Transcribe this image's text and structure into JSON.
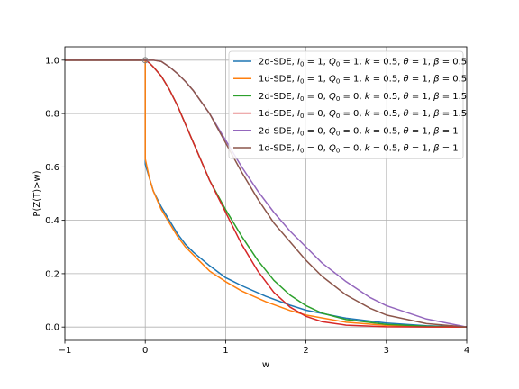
{
  "chart_data": {
    "type": "line",
    "title": "",
    "xlabel": "w",
    "ylabel": "P(Z(T)>w)",
    "xlim": [
      -1,
      4
    ],
    "ylim": [
      -0.05,
      1.05
    ],
    "xticks": [
      -1,
      0,
      1,
      2,
      3,
      4
    ],
    "xtick_labels": [
      "−1",
      "0",
      "1",
      "2",
      "3",
      "4"
    ],
    "yticks": [
      0.0,
      0.2,
      0.4,
      0.6,
      0.8,
      1.0
    ],
    "ytick_labels": [
      "0.0",
      "0.2",
      "0.4",
      "0.6",
      "0.8",
      "1.0"
    ],
    "grid": true,
    "legend_position": "top-right",
    "marker": {
      "x": 0,
      "y": 1.0,
      "shape": "open-circle"
    },
    "series": [
      {
        "label_parts": {
          "model": "2d-SDE,",
          "I0": "1",
          "Q0": "1",
          "k": "0.5",
          "theta": "1",
          "beta": "0.5"
        },
        "color": "#1f77b4",
        "x": [
          -1,
          0,
          0,
          0.05,
          0.1,
          0.2,
          0.3,
          0.4,
          0.5,
          0.6,
          0.8,
          1.0,
          1.2,
          1.5,
          1.8,
          2.0,
          2.5,
          3.0,
          3.5,
          4.0
        ],
        "y": [
          1.0,
          1.0,
          0.61,
          0.56,
          0.51,
          0.45,
          0.4,
          0.35,
          0.31,
          0.28,
          0.23,
          0.185,
          0.155,
          0.115,
          0.082,
          0.063,
          0.033,
          0.015,
          0.005,
          0.0
        ]
      },
      {
        "label_parts": {
          "model": "1d-SDE,",
          "I0": "1",
          "Q0": "1",
          "k": "0.5",
          "theta": "1",
          "beta": "0.5"
        },
        "color": "#ff7f0e",
        "x": [
          -1,
          0,
          0,
          0.05,
          0.1,
          0.2,
          0.3,
          0.4,
          0.5,
          0.6,
          0.8,
          1.0,
          1.2,
          1.5,
          1.8,
          2.0,
          2.5,
          3.0,
          3.5,
          4.0
        ],
        "y": [
          1.0,
          1.0,
          0.63,
          0.56,
          0.51,
          0.44,
          0.39,
          0.34,
          0.3,
          0.27,
          0.21,
          0.17,
          0.135,
          0.095,
          0.062,
          0.045,
          0.018,
          0.006,
          0.001,
          0.0
        ]
      },
      {
        "label_parts": {
          "model": "2d-SDE,",
          "I0": "0",
          "Q0": "0",
          "k": "0.5",
          "theta": "1",
          "beta": "1.5"
        },
        "color": "#2ca02c",
        "x": [
          -1,
          0,
          0.05,
          0.1,
          0.2,
          0.3,
          0.4,
          0.5,
          0.6,
          0.7,
          0.8,
          1.0,
          1.2,
          1.4,
          1.6,
          1.8,
          2.0,
          2.2,
          2.5,
          3.0,
          3.5,
          4.0
        ],
        "y": [
          1.0,
          1.0,
          0.99,
          0.975,
          0.94,
          0.89,
          0.83,
          0.76,
          0.69,
          0.62,
          0.55,
          0.44,
          0.34,
          0.25,
          0.175,
          0.12,
          0.08,
          0.052,
          0.028,
          0.01,
          0.003,
          0.0
        ]
      },
      {
        "label_parts": {
          "model": "1d-SDE,",
          "I0": "0",
          "Q0": "0",
          "k": "0.5",
          "theta": "1",
          "beta": "1.5"
        },
        "color": "#d62728",
        "x": [
          -1,
          0,
          0.05,
          0.1,
          0.2,
          0.3,
          0.4,
          0.5,
          0.6,
          0.7,
          0.8,
          1.0,
          1.2,
          1.4,
          1.6,
          1.8,
          2.0,
          2.2,
          2.5,
          3.0,
          3.5,
          4.0
        ],
        "y": [
          1.0,
          1.0,
          0.99,
          0.975,
          0.94,
          0.89,
          0.83,
          0.76,
          0.69,
          0.62,
          0.55,
          0.43,
          0.31,
          0.21,
          0.13,
          0.075,
          0.04,
          0.02,
          0.007,
          0.001,
          0.0,
          0.0
        ]
      },
      {
        "label_parts": {
          "model": "2d-SDE,",
          "I0": "0",
          "Q0": "0",
          "k": "0.5",
          "theta": "1",
          "beta": "1"
        },
        "color": "#9467bd",
        "x": [
          -1,
          0,
          0.05,
          0.1,
          0.2,
          0.3,
          0.4,
          0.5,
          0.6,
          0.8,
          1.0,
          1.2,
          1.4,
          1.6,
          1.8,
          2.0,
          2.2,
          2.5,
          2.8,
          3.0,
          3.5,
          4.0
        ],
        "y": [
          1.0,
          1.0,
          1.0,
          1.0,
          0.995,
          0.975,
          0.95,
          0.92,
          0.885,
          0.8,
          0.7,
          0.6,
          0.51,
          0.43,
          0.36,
          0.3,
          0.24,
          0.17,
          0.11,
          0.08,
          0.03,
          0.0
        ]
      },
      {
        "label_parts": {
          "model": "1d-SDE,",
          "I0": "0",
          "Q0": "0",
          "k": "0.5",
          "theta": "1",
          "beta": "1"
        },
        "color": "#8c564b",
        "x": [
          -1,
          0,
          0.05,
          0.1,
          0.2,
          0.3,
          0.4,
          0.5,
          0.6,
          0.8,
          1.0,
          1.2,
          1.4,
          1.6,
          1.8,
          2.0,
          2.2,
          2.5,
          2.8,
          3.0,
          3.5,
          4.0
        ],
        "y": [
          1.0,
          1.0,
          1.0,
          1.0,
          0.995,
          0.975,
          0.95,
          0.92,
          0.885,
          0.8,
          0.69,
          0.58,
          0.48,
          0.39,
          0.32,
          0.25,
          0.19,
          0.12,
          0.07,
          0.045,
          0.013,
          0.0
        ]
      }
    ]
  }
}
